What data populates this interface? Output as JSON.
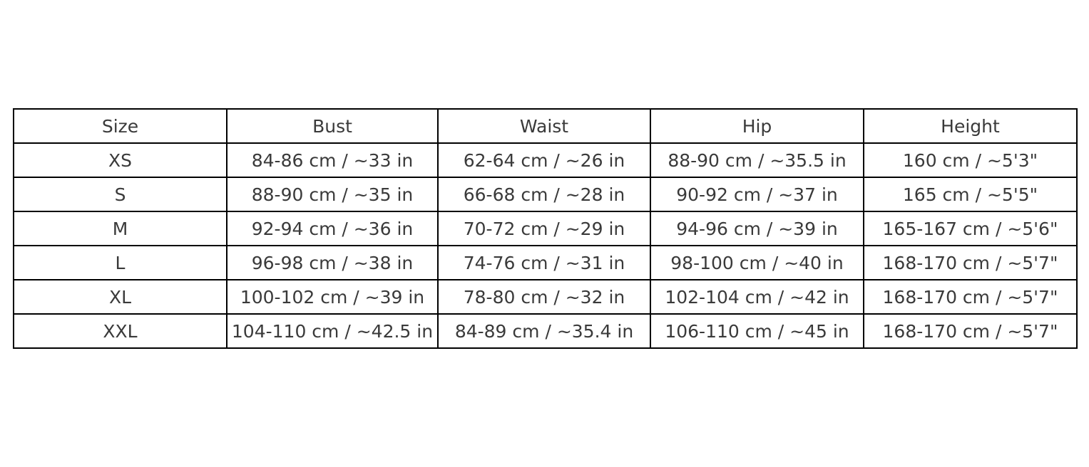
{
  "chart_data": {
    "type": "table",
    "title": "",
    "columns": [
      "Size",
      "Bust",
      "Waist",
      "Hip",
      "Height"
    ],
    "rows": [
      [
        "XS",
        "84-86 cm / ~33 in",
        "62-64 cm / ~26 in",
        "88-90 cm / ~35.5 in",
        "160 cm / ~5'3\""
      ],
      [
        "S",
        "88-90 cm / ~35 in",
        "66-68 cm / ~28 in",
        "90-92 cm / ~37 in",
        "165 cm / ~5'5\""
      ],
      [
        "M",
        "92-94 cm / ~36 in",
        "70-72 cm / ~29 in",
        "94-96 cm / ~39 in",
        "165-167 cm / ~5'6\""
      ],
      [
        "L",
        "96-98 cm / ~38 in",
        "74-76 cm / ~31 in",
        "98-100 cm / ~40 in",
        "168-170 cm / ~5'7\""
      ],
      [
        "XL",
        "100-102 cm / ~39 in",
        "78-80 cm / ~32 in",
        "102-104 cm / ~42 in",
        "168-170 cm / ~5'7\""
      ],
      [
        "XXL",
        "104-110 cm / ~42.5 in",
        "84-89 cm / ~35.4 in",
        "106-110 cm / ~45 in",
        "168-170 cm / ~5'7\""
      ]
    ],
    "layout": {
      "grid": true,
      "border_color": "#000000",
      "text_color": "#3a3a3a",
      "background": "#ffffff"
    }
  }
}
